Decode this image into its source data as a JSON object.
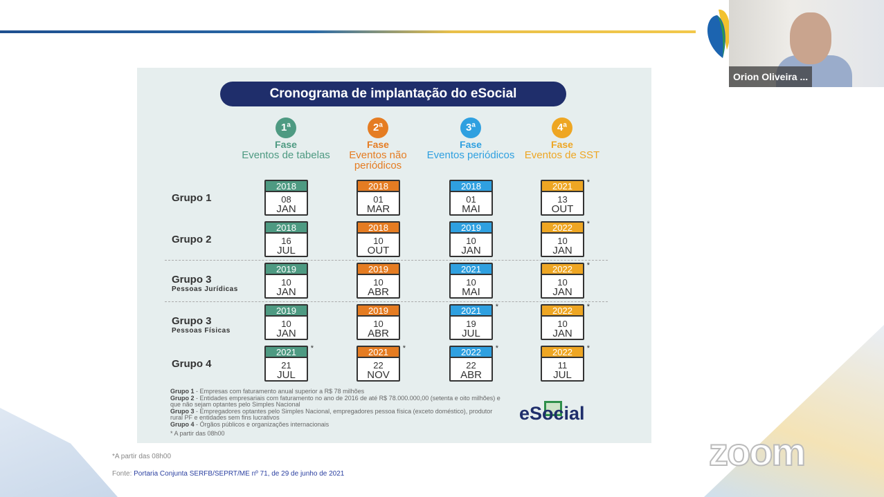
{
  "slide": {
    "title": "Cronograma de implantação do eSocial",
    "phases": [
      {
        "num": "1ª",
        "label": "Fase",
        "events": "Eventos de tabelas",
        "color": "#4e9a82"
      },
      {
        "num": "2ª",
        "label": "Fase",
        "events": "Eventos não periódicos",
        "color": "#e57c22"
      },
      {
        "num": "3ª",
        "label": "Fase",
        "events": "Eventos periódicos",
        "color": "#2fa0e0"
      },
      {
        "num": "4ª",
        "label": "Fase",
        "events": "Eventos de SST",
        "color": "#eea623"
      }
    ],
    "groups": [
      {
        "name": "Grupo 1",
        "sub": "",
        "dates": [
          {
            "y": "2018",
            "d": "08",
            "m": "JAN"
          },
          {
            "y": "2018",
            "d": "01",
            "m": "MAR"
          },
          {
            "y": "2018",
            "d": "01",
            "m": "MAI"
          },
          {
            "y": "2021",
            "d": "13",
            "m": "OUT",
            "star": "*"
          }
        ]
      },
      {
        "name": "Grupo 2",
        "sub": "",
        "dates": [
          {
            "y": "2018",
            "d": "16",
            "m": "JUL"
          },
          {
            "y": "2018",
            "d": "10",
            "m": "OUT"
          },
          {
            "y": "2019",
            "d": "10",
            "m": "JAN"
          },
          {
            "y": "2022",
            "d": "10",
            "m": "JAN",
            "star": "*"
          }
        ]
      },
      {
        "name": "Grupo 3",
        "sub": "Pessoas Jurídicas",
        "dates": [
          {
            "y": "2019",
            "d": "10",
            "m": "JAN"
          },
          {
            "y": "2019",
            "d": "10",
            "m": "ABR"
          },
          {
            "y": "2021",
            "d": "10",
            "m": "MAI"
          },
          {
            "y": "2022",
            "d": "10",
            "m": "JAN",
            "star": "*"
          }
        ]
      },
      {
        "name": "Grupo 3",
        "sub": "Pessoas Físicas",
        "dates": [
          {
            "y": "2019",
            "d": "10",
            "m": "JAN"
          },
          {
            "y": "2019",
            "d": "10",
            "m": "ABR"
          },
          {
            "y": "2021",
            "d": "19",
            "m": "JUL",
            "star": "*"
          },
          {
            "y": "2022",
            "d": "10",
            "m": "JAN",
            "star": "*"
          }
        ]
      },
      {
        "name": "Grupo 4",
        "sub": "",
        "dates": [
          {
            "y": "2021",
            "d": "21",
            "m": "JUL",
            "star": "*"
          },
          {
            "y": "2021",
            "d": "22",
            "m": "NOV",
            "star": "*"
          },
          {
            "y": "2022",
            "d": "22",
            "m": "ABR",
            "star": "*"
          },
          {
            "y": "2022",
            "d": "11",
            "m": "JUL",
            "star": "*"
          }
        ]
      }
    ],
    "notes": [
      {
        "k": "Grupo 1",
        "t": " - Empresas com faturamento anual superior a R$ 78 milhões"
      },
      {
        "k": "Grupo 2",
        "t": " - Entidades empresariais com faturamento no ano de 2016 de até R$ 78.000.000,00 (setenta e oito milhões) e que não sejam optantes pelo Simples Nacional"
      },
      {
        "k": "Grupo 3",
        "t": " - Empregadores optantes pelo Simples Nacional, empregadores pessoa física (exceto doméstico), produtor rural PF e entidades sem fins lucrativos"
      },
      {
        "k": "Grupo 4",
        "t": " - Órgãos públicos e organizações internacionais"
      }
    ],
    "note_star": "* A partir das 08h00",
    "brand": "eSocial"
  },
  "footer": {
    "note": "*A partir das 08h00",
    "source_label": "Fonte: ",
    "source": "Portaria Conjunta SERFB/SEPRT/ME nº 71, de 29 de junho de 2021"
  },
  "video": {
    "participant": "Orion Oliveira ..."
  },
  "watermark": "zoom"
}
